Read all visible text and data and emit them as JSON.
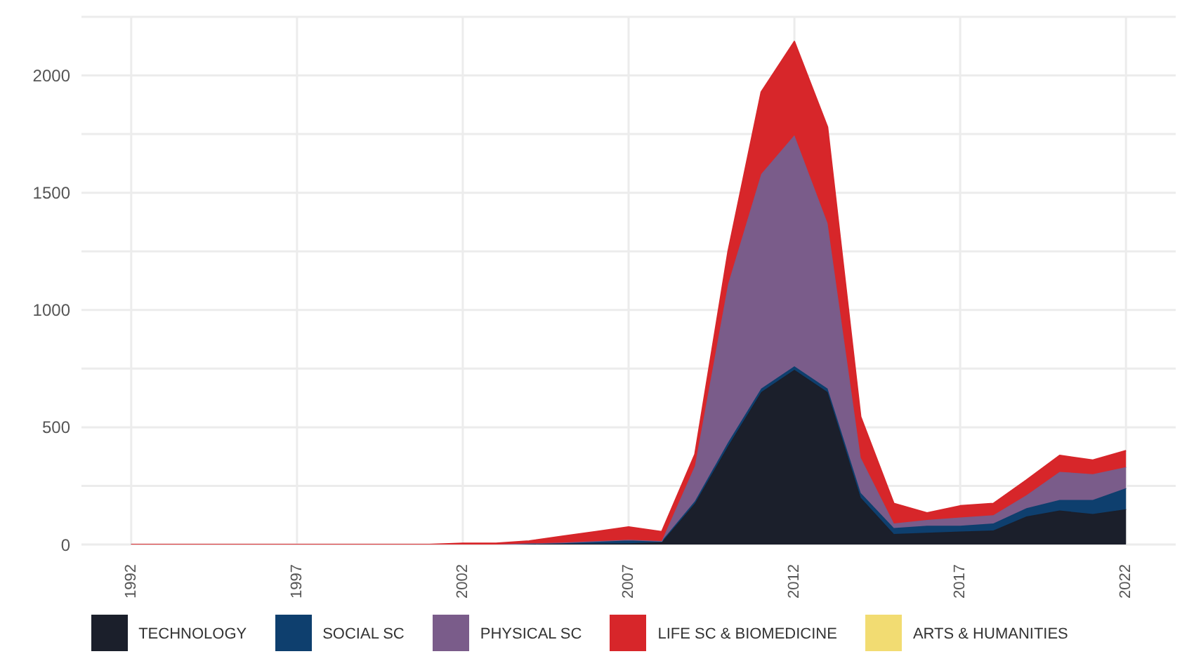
{
  "chart_data": {
    "type": "area",
    "stacked": true,
    "x": [
      1992,
      1993,
      1994,
      1995,
      1996,
      1997,
      1998,
      1999,
      2000,
      2001,
      2002,
      2003,
      2004,
      2005,
      2006,
      2007,
      2008,
      2009,
      2010,
      2011,
      2012,
      2013,
      2014,
      2015,
      2016,
      2017,
      2018,
      2019,
      2020,
      2021,
      2022
    ],
    "series": [
      {
        "name": "TECHNOLOGY",
        "color": "#1b1f2b",
        "values": [
          0,
          0,
          0,
          0,
          0,
          0,
          0,
          0,
          0,
          0,
          0,
          0,
          2,
          3,
          4,
          5,
          10,
          175,
          420,
          650,
          745,
          650,
          200,
          45,
          50,
          55,
          60,
          120,
          145,
          130,
          150
        ]
      },
      {
        "name": "SOCIAL SC",
        "color": "#0e3f6e",
        "values": [
          0,
          0,
          0,
          0,
          0,
          0,
          0,
          0,
          0,
          0,
          0,
          0,
          3,
          5,
          10,
          15,
          5,
          10,
          15,
          15,
          15,
          15,
          20,
          25,
          30,
          25,
          30,
          35,
          45,
          60,
          90
        ]
      },
      {
        "name": "PHYSICAL SC",
        "color": "#7a5c8a",
        "values": [
          0,
          0,
          0,
          0,
          0,
          0,
          0,
          0,
          0,
          0,
          0,
          0,
          0,
          0,
          0,
          0,
          0,
          150,
          675,
          915,
          985,
          705,
          150,
          20,
          25,
          35,
          35,
          55,
          120,
          110,
          90
        ]
      },
      {
        "name": "LIFE SC & BIOMEDICINE",
        "color": "#d7262a",
        "values": [
          0,
          0,
          0,
          0,
          0,
          0,
          0,
          0,
          0,
          0,
          5,
          5,
          10,
          27,
          41,
          55,
          40,
          50,
          140,
          350,
          400,
          410,
          175,
          85,
          30,
          50,
          50,
          65,
          70,
          60,
          70
        ]
      },
      {
        "name": "ARTS & HUMANITIES",
        "color": "#f2dc72",
        "values": [
          null,
          null,
          null,
          null,
          null,
          null,
          null,
          null,
          null,
          null,
          null,
          null,
          null,
          null,
          null,
          null,
          null,
          null,
          null,
          null,
          null,
          null,
          null,
          null,
          null,
          null,
          null,
          null,
          null,
          null,
          null
        ]
      }
    ],
    "xlim": [
      1990.5,
      2023.5
    ],
    "xticks": [
      1992,
      1997,
      2002,
      2007,
      2012,
      2017,
      2022
    ],
    "ylim": [
      0,
      2250
    ],
    "yticks": [
      0,
      {
        "value": 250,
        "label": null
      },
      500,
      {
        "value": 750,
        "label": null
      },
      1000,
      {
        "value": 1250,
        "label": null
      },
      1500,
      {
        "value": 1750,
        "label": null
      },
      2000,
      {
        "value": 2250,
        "label": null
      }
    ],
    "grid": true,
    "legend": "bottom"
  }
}
